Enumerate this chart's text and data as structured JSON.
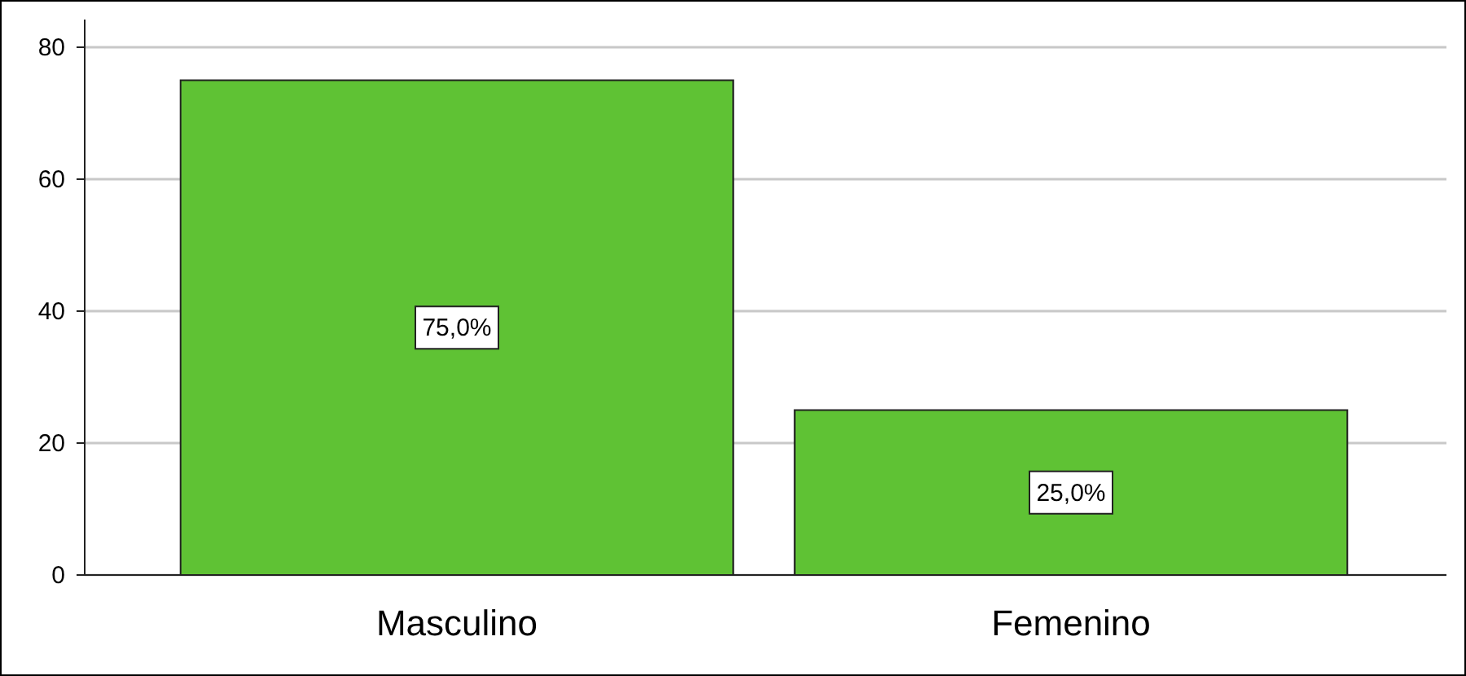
{
  "chart_data": {
    "type": "bar",
    "categories": [
      "Masculino",
      "Femenino"
    ],
    "values": [
      75,
      25
    ],
    "color": "#5fc234",
    "value_labels": [
      "75,0%",
      "25,0%"
    ],
    "ylim": [
      0,
      84.2
    ],
    "yticks": [
      0,
      20,
      40,
      60,
      80
    ],
    "grid": "y"
  }
}
